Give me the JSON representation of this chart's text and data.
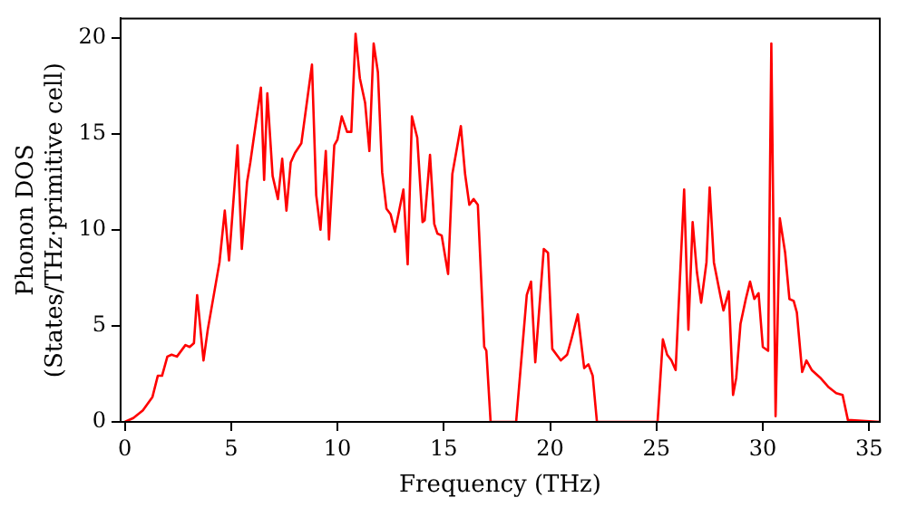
{
  "chart_data": {
    "type": "line",
    "xlabel": "Frequency (THz)",
    "ylabel": "Phonon DOS\n(States/THz·primitive cell)",
    "xlim": [
      -0.2,
      35.5
    ],
    "ylim": [
      0,
      21
    ],
    "xticks": [
      0,
      5,
      10,
      15,
      20,
      25,
      30,
      35
    ],
    "yticks": [
      0,
      5,
      10,
      15,
      20
    ],
    "grid": false,
    "legend": false,
    "marker": "none",
    "line_style": "solid",
    "series": [
      {
        "color": "#ff0000",
        "x": [
          0,
          0.4,
          0.85,
          1.3,
          1.55,
          1.75,
          2.0,
          2.2,
          2.45,
          2.85,
          3.05,
          3.25,
          3.4,
          3.7,
          3.9,
          4.45,
          4.7,
          4.9,
          5.3,
          5.5,
          5.75,
          5.9,
          6.4,
          6.55,
          6.7,
          6.95,
          7.2,
          7.4,
          7.6,
          7.8,
          8.0,
          8.3,
          8.8,
          9.0,
          9.2,
          9.45,
          9.6,
          9.85,
          10.0,
          10.2,
          10.45,
          10.65,
          10.85,
          11.05,
          11.3,
          11.5,
          11.7,
          11.9,
          12.1,
          12.3,
          12.5,
          12.7,
          13.1,
          13.3,
          13.5,
          13.75,
          14.0,
          14.1,
          14.35,
          14.55,
          14.7,
          14.9,
          15.2,
          15.4,
          15.8,
          16.0,
          16.2,
          16.4,
          16.6,
          16.9,
          17.0,
          17.2,
          18.4,
          18.9,
          19.1,
          19.3,
          19.7,
          19.9,
          20.1,
          20.3,
          20.5,
          20.8,
          21.0,
          21.3,
          21.6,
          21.8,
          22.0,
          22.2,
          25.05,
          25.3,
          25.5,
          25.7,
          25.9,
          26.3,
          26.5,
          26.7,
          26.9,
          27.1,
          27.35,
          27.5,
          27.7,
          28.0,
          28.15,
          28.4,
          28.6,
          28.75,
          28.95,
          29.2,
          29.4,
          29.6,
          29.8,
          30.0,
          30.25,
          30.4,
          30.6,
          30.8,
          31.05,
          31.25,
          31.45,
          31.6,
          31.85,
          32.05,
          32.3,
          32.7,
          33.1,
          33.45,
          33.75,
          34.0,
          35.5
        ],
        "values": [
          0,
          0.2,
          0.6,
          1.3,
          2.4,
          2.4,
          3.4,
          3.5,
          3.4,
          4.0,
          3.9,
          4.1,
          6.6,
          3.2,
          4.8,
          8.3,
          11.0,
          8.4,
          14.4,
          9.0,
          12.5,
          13.5,
          17.4,
          12.6,
          17.1,
          12.8,
          11.6,
          13.7,
          11.0,
          13.5,
          14.0,
          14.5,
          18.6,
          11.8,
          10.0,
          14.1,
          9.5,
          14.4,
          14.7,
          15.9,
          15.1,
          15.1,
          20.2,
          17.9,
          16.6,
          14.1,
          19.7,
          18.2,
          13.0,
          11.1,
          10.8,
          9.9,
          12.1,
          8.2,
          15.9,
          14.8,
          10.4,
          10.5,
          13.9,
          10.3,
          9.8,
          9.7,
          7.7,
          12.9,
          15.4,
          12.9,
          11.3,
          11.6,
          11.3,
          3.9,
          3.7,
          0,
          0,
          6.6,
          7.3,
          3.1,
          9.0,
          8.8,
          3.8,
          3.5,
          3.2,
          3.5,
          4.3,
          5.6,
          2.8,
          3.0,
          2.4,
          0,
          0,
          4.3,
          3.5,
          3.2,
          2.7,
          12.1,
          4.8,
          10.4,
          7.8,
          6.2,
          8.3,
          12.2,
          8.3,
          6.6,
          5.8,
          6.8,
          1.4,
          2.3,
          5.1,
          6.4,
          7.3,
          6.4,
          6.7,
          3.9,
          3.7,
          19.7,
          0.3,
          10.6,
          8.8,
          6.4,
          6.3,
          5.7,
          2.6,
          3.2,
          2.7,
          2.3,
          1.8,
          1.5,
          1.4,
          0.1,
          0
        ]
      }
    ]
  }
}
